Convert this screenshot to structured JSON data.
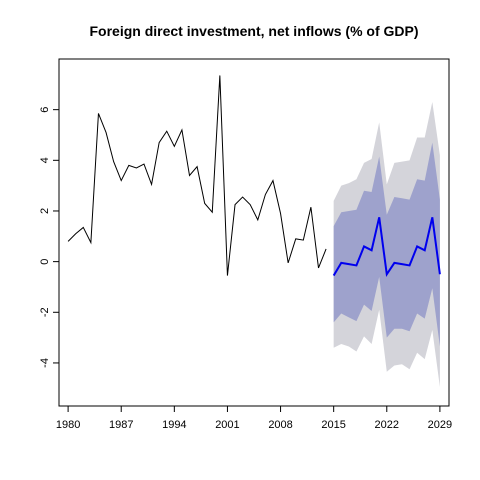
{
  "chart_data": {
    "type": "line",
    "title": "Foreign direct investment, net inflows (% of GDP)",
    "xlabel": "",
    "ylabel": "",
    "xlim": [
      1978.8,
      2030.2
    ],
    "ylim": [
      -5.7,
      8.0
    ],
    "x_ticks": [
      1980,
      1987,
      1994,
      2001,
      2008,
      2015,
      2022,
      2029
    ],
    "y_ticks": [
      -4,
      -2,
      0,
      2,
      4,
      6
    ],
    "grid": false,
    "series": [
      {
        "role": "observed",
        "color": "#000000",
        "x": [
          1980,
          1981,
          1982,
          1983,
          1984,
          1985,
          1986,
          1987,
          1988,
          1989,
          1990,
          1991,
          1992,
          1993,
          1994,
          1995,
          1996,
          1997,
          1998,
          1999,
          2000,
          2001,
          2002,
          2003,
          2004,
          2005,
          2006,
          2007,
          2008,
          2009,
          2010,
          2011,
          2012,
          2013,
          2014
        ],
        "values": [
          0.8,
          1.1,
          1.35,
          0.75,
          5.85,
          5.1,
          3.95,
          3.2,
          3.8,
          3.7,
          3.85,
          3.05,
          4.7,
          5.15,
          4.55,
          5.2,
          3.4,
          3.75,
          2.3,
          1.95,
          7.35,
          -0.55,
          2.25,
          2.55,
          2.25,
          1.65,
          2.65,
          3.2,
          1.9,
          -0.05,
          0.9,
          0.85,
          2.15,
          -0.25,
          0.5
        ]
      },
      {
        "role": "forecast",
        "color": "#0000ee",
        "x": [
          2015,
          2016,
          2017,
          2018,
          2019,
          2020,
          2021,
          2022,
          2023,
          2024,
          2025,
          2026,
          2027,
          2028,
          2029
        ],
        "values": [
          -0.55,
          -0.05,
          -0.1,
          -0.15,
          0.6,
          0.45,
          1.75,
          -0.5,
          -0.05,
          -0.1,
          -0.15,
          0.6,
          0.45,
          1.75,
          -0.5
        ]
      }
    ],
    "bands": [
      {
        "role": "prediction-interval-outer",
        "color": "#d4d4da",
        "x": [
          2015,
          2016,
          2017,
          2018,
          2019,
          2020,
          2021,
          2022,
          2023,
          2024,
          2025,
          2026,
          2027,
          2028,
          2029
        ],
        "lower": [
          -3.4,
          -3.25,
          -3.35,
          -3.55,
          -2.95,
          -3.25,
          -1.9,
          -4.35,
          -4.1,
          -4.05,
          -4.25,
          -3.6,
          -3.85,
          -2.7,
          -4.95
        ],
        "upper": [
          2.4,
          3.0,
          3.1,
          3.25,
          3.9,
          4.05,
          5.5,
          3.05,
          3.9,
          3.95,
          4.0,
          4.9,
          4.9,
          6.3,
          4.2
        ]
      },
      {
        "role": "prediction-interval-inner",
        "color": "#9ea2cc",
        "x": [
          2015,
          2016,
          2017,
          2018,
          2019,
          2020,
          2021,
          2022,
          2023,
          2024,
          2025,
          2026,
          2027,
          2028,
          2029
        ],
        "lower": [
          -2.4,
          -2.05,
          -2.2,
          -2.35,
          -1.7,
          -1.95,
          -0.6,
          -3.0,
          -2.65,
          -2.65,
          -2.75,
          -2.05,
          -2.25,
          -1.05,
          -3.35
        ],
        "upper": [
          1.4,
          1.95,
          2.0,
          2.05,
          2.8,
          2.75,
          4.15,
          1.85,
          2.55,
          2.5,
          2.45,
          3.25,
          3.2,
          4.7,
          2.45
        ]
      }
    ]
  }
}
